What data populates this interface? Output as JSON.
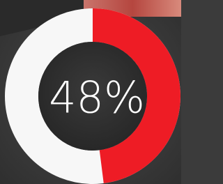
{
  "chart_data": {
    "type": "donut",
    "values": [
      48
    ],
    "value_labels": [
      "48%"
    ],
    "color": "#ee1c25",
    "track_color": "#f7f7f7"
  }
}
